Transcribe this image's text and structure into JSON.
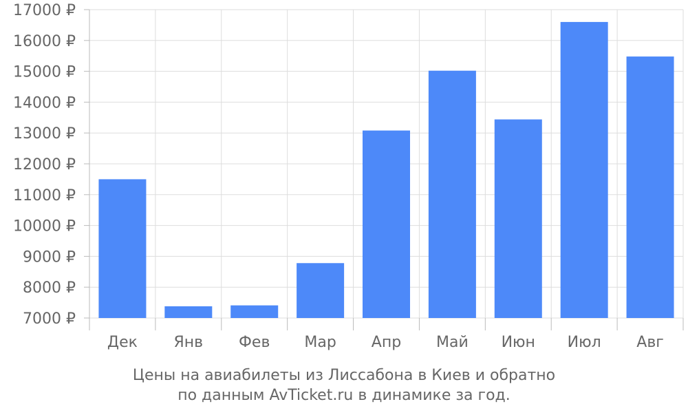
{
  "chart_data": {
    "type": "bar",
    "categories": [
      "Дек",
      "Янв",
      "Фев",
      "Мар",
      "Апр",
      "Май",
      "Июн",
      "Июл",
      "Авг"
    ],
    "values": [
      11500,
      7380,
      7410,
      8780,
      13080,
      15020,
      13440,
      16600,
      15480
    ],
    "ylim": [
      7000,
      17000
    ],
    "yticks": [
      7000,
      8000,
      9000,
      10000,
      11000,
      12000,
      13000,
      14000,
      15000,
      16000,
      17000
    ],
    "ytick_suffix": " ₽",
    "grid": true,
    "bar_color": "#4d89f9",
    "grid_color": "#dddddd",
    "axis_color": "#bbbbbb",
    "text_color": "#666666"
  },
  "caption": {
    "line1": "Цены на авиабилеты из Лиссабона в Киев и обратно",
    "line2": "по данным AvTicket.ru в динамике за год."
  }
}
